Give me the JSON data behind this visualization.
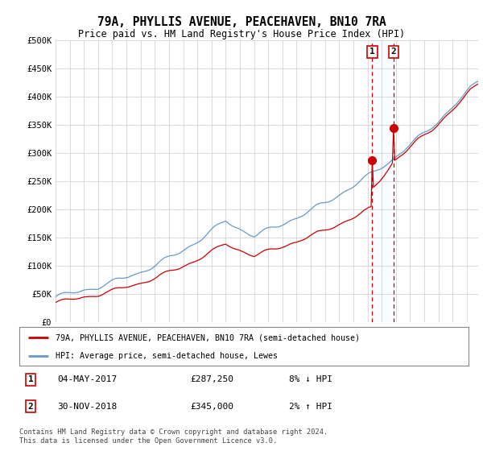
{
  "title": "79A, PHYLLIS AVENUE, PEACEHAVEN, BN10 7RA",
  "subtitle": "Price paid vs. HM Land Registry's House Price Index (HPI)",
  "ylabel_ticks": [
    "£0",
    "£50K",
    "£100K",
    "£150K",
    "£200K",
    "£250K",
    "£300K",
    "£350K",
    "£400K",
    "£450K",
    "£500K"
  ],
  "ytick_values": [
    0,
    50000,
    100000,
    150000,
    200000,
    250000,
    300000,
    350000,
    400000,
    450000,
    500000
  ],
  "x_start_year": 1995,
  "x_end_year": 2024,
  "legend_line1": "79A, PHYLLIS AVENUE, PEACEHAVEN, BN10 7RA (semi-detached house)",
  "legend_line2": "HPI: Average price, semi-detached house, Lewes",
  "marker1_date": "04-MAY-2017",
  "marker1_price": 287250,
  "marker1_label": "8% ↓ HPI",
  "marker2_date": "30-NOV-2018",
  "marker2_price": 345000,
  "marker2_label": "2% ↑ HPI",
  "footnote": "Contains HM Land Registry data © Crown copyright and database right 2024.\nThis data is licensed under the Open Government Licence v3.0.",
  "line_color_red": "#cc0000",
  "line_color_blue": "#6699cc",
  "marker_box_color": "#cc0000",
  "marker_fill_color": "#ddeeff",
  "background_color": "#ffffff",
  "grid_color": "#cccccc"
}
